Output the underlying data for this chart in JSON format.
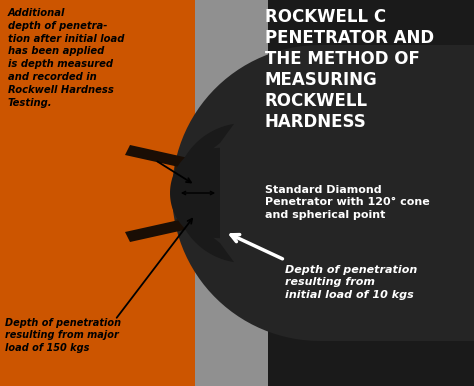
{
  "bg_color": "#c0b8b0",
  "orange_color": "#cc5500",
  "dark_bg": "#1a1a1a",
  "gray_light": "#909090",
  "gray_med": "#707070",
  "title_lines": [
    "ROCKWELL C",
    "PENETRATOR AND",
    "THE METHOD OF",
    "MEASURING",
    "ROCKWELL",
    "HARDNESS"
  ],
  "subtitle": "Standard Diamond\nPenetrator with 120° cone\nand spherical point",
  "label_top": "Additional\ndepth of penetra-\ntion after initial load\nhas been applied\nis depth measured\nand recorded in\nRockwell Hardness\nTesting.",
  "label_bottom_left": "Depth of penetration\nresulting from major\nload of 150 kgs",
  "label_bottom_right": "Depth of penetration\nresulting from\ninitial load of 10 kgs",
  "white": "#ffffff",
  "black": "#000000",
  "figw": 4.74,
  "figh": 3.86,
  "dpi": 100
}
